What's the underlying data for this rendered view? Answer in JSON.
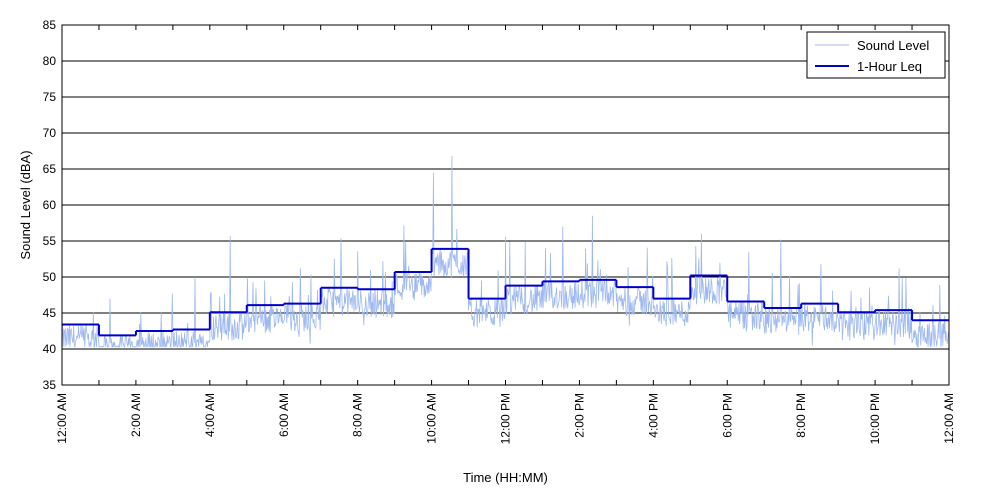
{
  "chart_data": {
    "type": "line",
    "title": "",
    "xlabel": "Time (HH:MM)",
    "ylabel": "Sound Level (dBA)",
    "ylim": [
      35,
      85
    ],
    "xlim_hours": [
      0,
      24
    ],
    "yticks": [
      35,
      40,
      45,
      50,
      55,
      60,
      65,
      70,
      75,
      80,
      85
    ],
    "xticks": [
      {
        "hour": 0,
        "label": "12:00 AM"
      },
      {
        "hour": 2,
        "label": "2:00 AM"
      },
      {
        "hour": 4,
        "label": "4:00 AM"
      },
      {
        "hour": 6,
        "label": "6:00 AM"
      },
      {
        "hour": 8,
        "label": "8:00 AM"
      },
      {
        "hour": 10,
        "label": "10:00 AM"
      },
      {
        "hour": 12,
        "label": "12:00 PM"
      },
      {
        "hour": 14,
        "label": "2:00 PM"
      },
      {
        "hour": 16,
        "label": "4:00 PM"
      },
      {
        "hour": 18,
        "label": "6:00 PM"
      },
      {
        "hour": 20,
        "label": "8:00 PM"
      },
      {
        "hour": 22,
        "label": "10:00 PM"
      },
      {
        "hour": 24,
        "label": "12:00 AM"
      }
    ],
    "grid": "horizontal",
    "legend_position": "top-right",
    "series": [
      {
        "name": "Sound Level",
        "color": "#9db8f0",
        "peaks": [
          {
            "hour": 10.55,
            "value": 66.8
          },
          {
            "hour": 10.05,
            "value": 64.5
          },
          {
            "hour": 14.35,
            "value": 58.5
          },
          {
            "hour": 9.25,
            "value": 57.2
          },
          {
            "hour": 13.55,
            "value": 57.0
          },
          {
            "hour": 17.3,
            "value": 56.0
          },
          {
            "hour": 4.55,
            "value": 55.7
          },
          {
            "hour": 7.55,
            "value": 55.4
          },
          {
            "hour": 12.0,
            "value": 55.6
          },
          {
            "hour": 19.45,
            "value": 55.2
          },
          {
            "hour": 1.3,
            "value": 47.0
          },
          {
            "hour": 3.6,
            "value": 50.0
          }
        ]
      },
      {
        "name": "1-Hour Leq",
        "color": "#0000cc",
        "values": [
          43.4,
          41.9,
          42.5,
          42.7,
          45.1,
          46.1,
          46.3,
          48.5,
          48.3,
          50.7,
          53.9,
          47.0,
          48.8,
          49.4,
          49.6,
          48.6,
          47.0,
          50.2,
          46.6,
          45.7,
          46.3,
          45.1,
          45.4,
          44.0
        ]
      }
    ]
  }
}
